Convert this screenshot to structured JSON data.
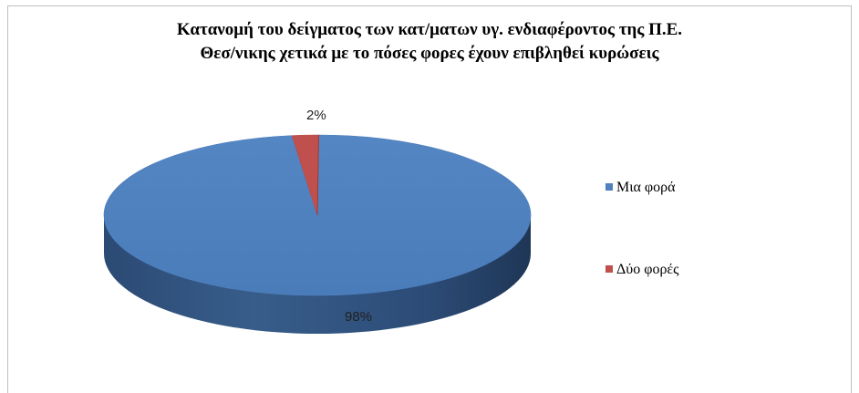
{
  "chart_data": {
    "type": "pie",
    "title_lines": [
      "Κατανομή  του δείγματος των κατ/ματων υγ. ενδιαφέροντος της Π.Ε.",
      "Θεσ/νικης χετικά με το πόσες φορες έχουν επιβληθεί κυρώσεις"
    ],
    "slices": [
      {
        "name": "Μια φορά",
        "value": 98,
        "label": "98%",
        "color": "#4f81bd"
      },
      {
        "name": "Δύο φορές",
        "value": 2,
        "label": "2%",
        "color": "#c0504d"
      }
    ],
    "legend_position": "right",
    "style_3d": true
  }
}
